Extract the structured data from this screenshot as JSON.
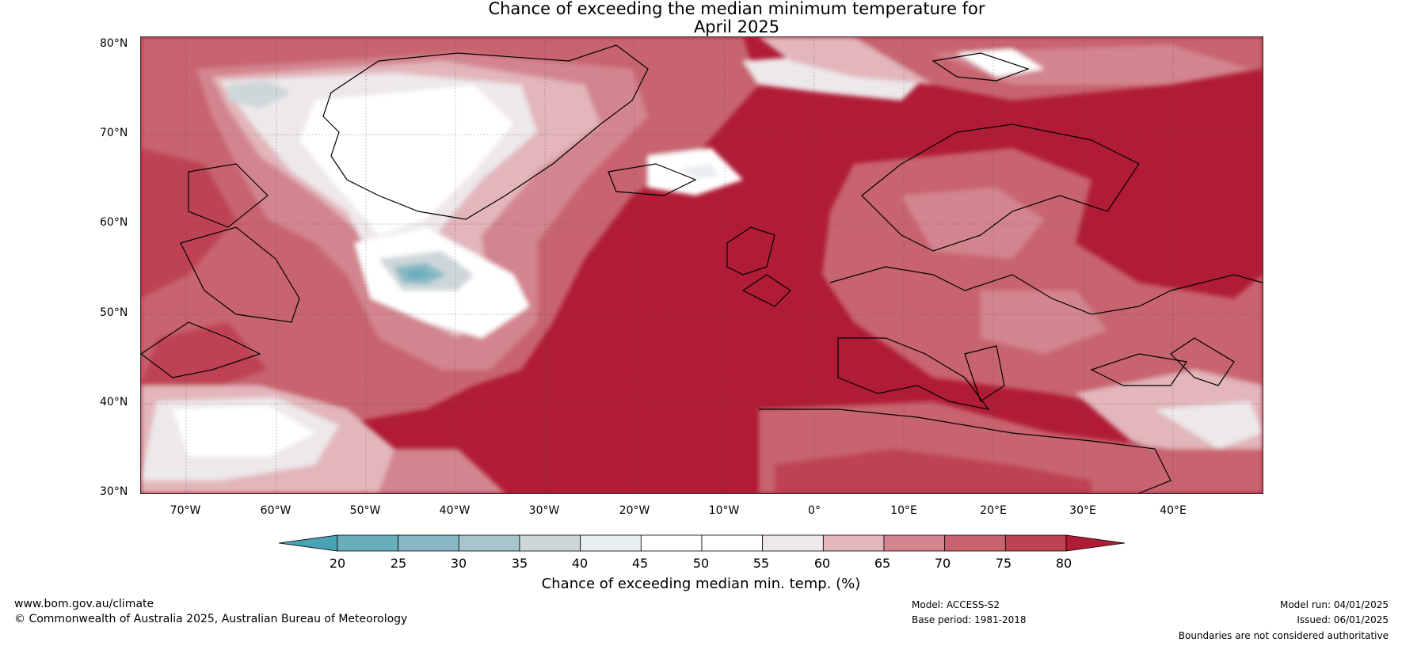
{
  "title": {
    "line1": "Chance of exceeding the median minimum temperature for",
    "line2": "April 2025"
  },
  "map": {
    "region": "North Atlantic and Europe",
    "lat_labels": [
      "80°N",
      "70°N",
      "60°N",
      "50°N",
      "40°N",
      "30°N"
    ],
    "lon_labels": [
      "70°W",
      "60°W",
      "50°W",
      "40°W",
      "30°W",
      "20°W",
      "10°W",
      "0°",
      "10°E",
      "20°E",
      "30°E",
      "40°E"
    ]
  },
  "legend": {
    "title": "Chance of exceeding median min. temp. (%)",
    "ticks": [
      "20",
      "25",
      "30",
      "35",
      "40",
      "45",
      "50",
      "55",
      "60",
      "65",
      "70",
      "75",
      "80"
    ],
    "colors": [
      "#4aa3b5",
      "#6aaebb",
      "#89b8c4",
      "#a9c5cc",
      "#cdd7d9",
      "#e8eff0",
      "#ffffff",
      "#ffffff",
      "#ede8ea",
      "#e2b6bb",
      "#d3858f",
      "#c8636f",
      "#be4352",
      "#b01c35"
    ]
  },
  "footer": {
    "website": "www.bom.gov.au/climate",
    "copyright": "© Commonwealth of Australia 2025, Australian Bureau of Meteorology",
    "model": "Model: ACCESS-S2",
    "base_period": "Base period: 1981-2018",
    "model_run": "Model run: 04/01/2025",
    "issued": "Issued: 06/01/2025",
    "disclaimer": "Boundaries are not considered authoritative"
  }
}
